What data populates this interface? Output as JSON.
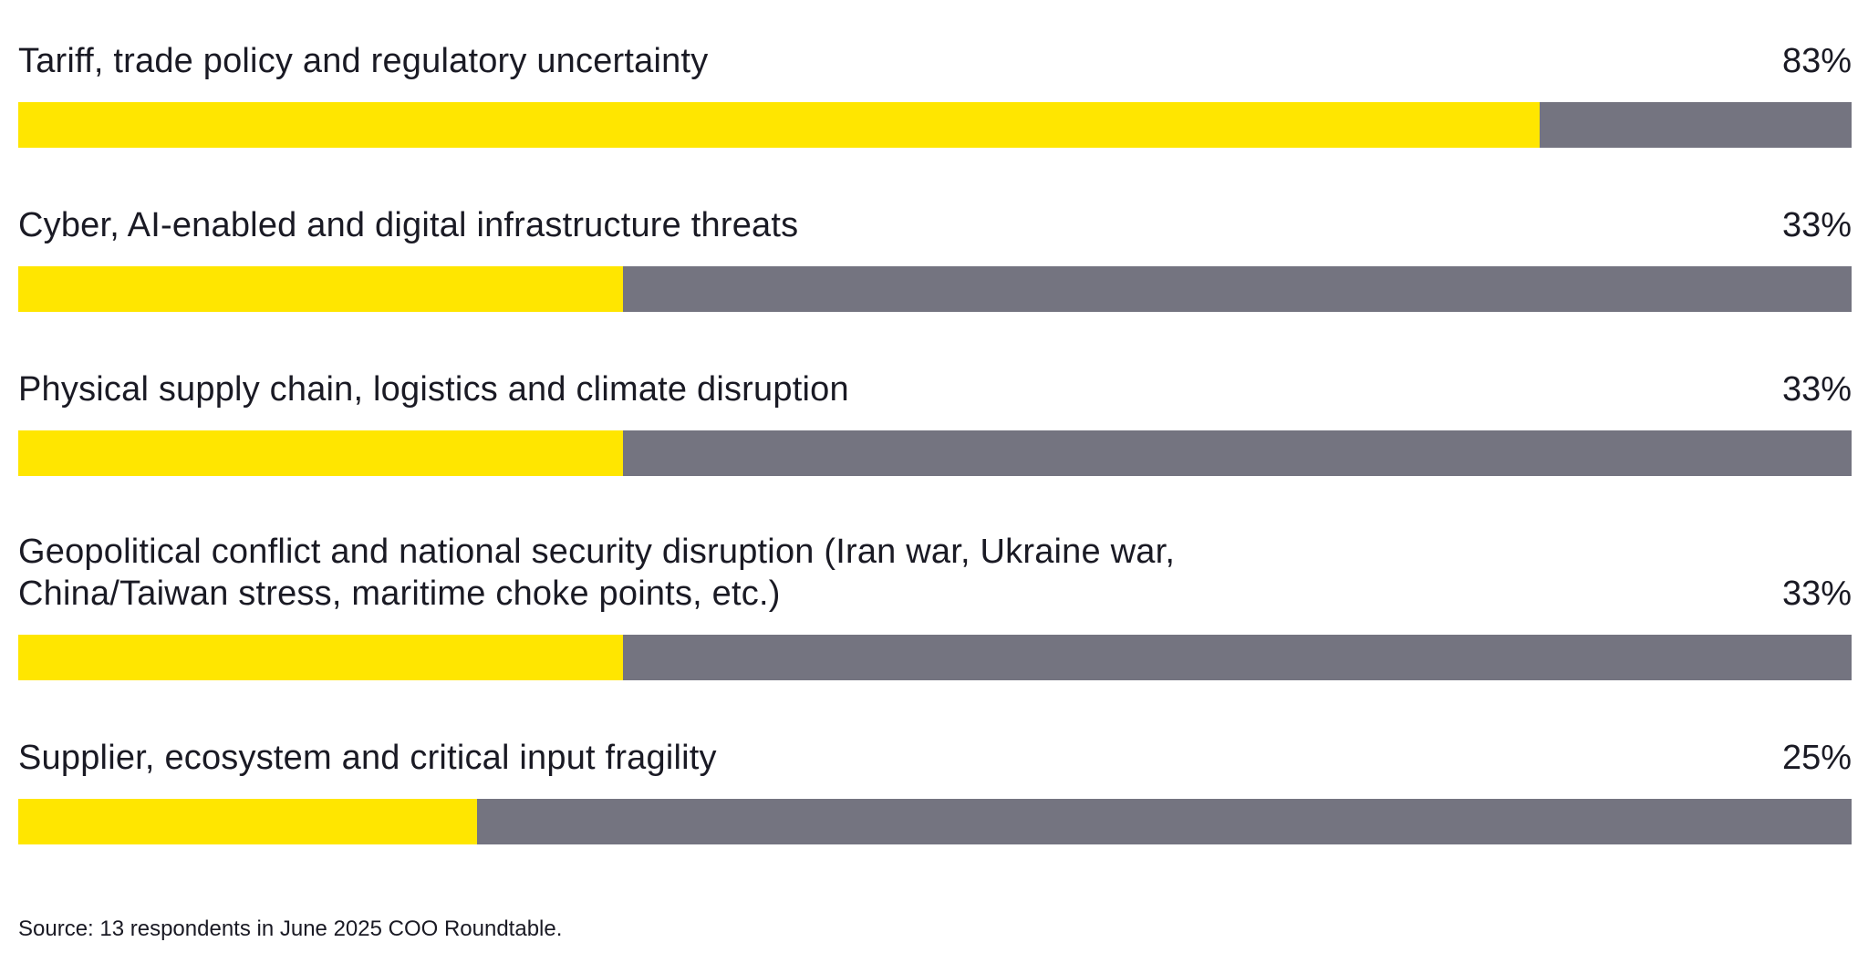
{
  "chart_data": {
    "type": "bar",
    "orientation": "horizontal",
    "categories": [
      "Tariff, trade policy and regulatory uncertainty",
      "Cyber, AI-enabled and digital infrastructure threats",
      "Physical supply chain, logistics and climate disruption",
      "Geopolitical conflict and national security disruption (Iran war, Ukraine war,\nChina/Taiwan stress, maritime choke points, etc.)",
      "Supplier, ecosystem and critical input fragility"
    ],
    "values": [
      83,
      33,
      33,
      33,
      25
    ],
    "value_labels": [
      "83%",
      "33%",
      "33%",
      "33%",
      "25%"
    ],
    "xlim": [
      0,
      100
    ],
    "unit": "%",
    "grid": false,
    "colors": {
      "fill": "#FFE600",
      "track": "#747480",
      "text": "#1A1A24"
    }
  },
  "footer": {
    "source": "Source: 13 respondents in June 2025 COO Roundtable."
  }
}
